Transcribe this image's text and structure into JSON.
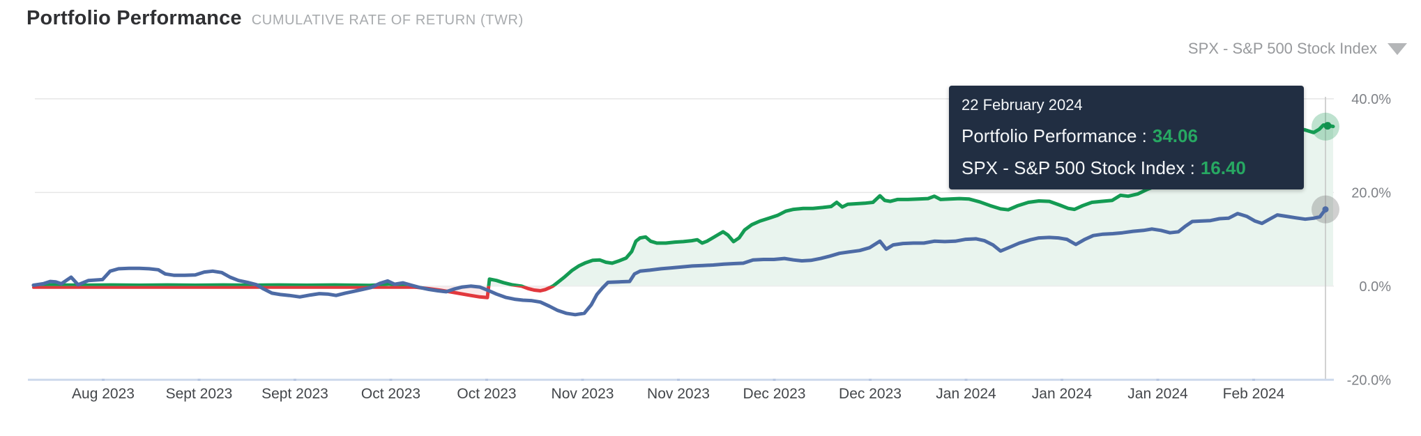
{
  "header": {
    "title": "Portfolio Performance",
    "subtitle": "CUMULATIVE RATE OF RETURN (TWR)"
  },
  "benchmark_selector": {
    "label": "SPX - S&P 500 Stock Index"
  },
  "tooltip": {
    "date": "22 February 2024",
    "rows": [
      {
        "label": "Portfolio Performance :",
        "value": "34.06"
      },
      {
        "label": "SPX - S&P 500 Stock Index :",
        "value": "16.40"
      }
    ],
    "value_color": "#27a862"
  },
  "chart_data": {
    "type": "line",
    "title": "Portfolio Performance — Cumulative Rate of Return (TWR)",
    "x_unit": "pixel position along time axis",
    "y_unit": "percent cumulative return",
    "x_tick_labels": [
      "Aug 2023",
      "Sept 2023",
      "Sept 2023",
      "Oct 2023",
      "Oct 2023",
      "Nov 2023",
      "Nov 2023",
      "Dec 2023",
      "Dec 2023",
      "Jan 2024",
      "Jan 2024",
      "Jan 2024",
      "Feb 2024"
    ],
    "y_tick_labels": [
      "40.0%",
      "20.0%",
      "0.0%",
      "-20.0%"
    ],
    "y_tick_values": [
      40,
      20,
      0,
      -20
    ],
    "y_axis_range_pct": [
      -20,
      40
    ],
    "grid": true,
    "legend_position": "none",
    "hover_date": "22 February 2024",
    "series": [
      {
        "name": "Portfolio Performance",
        "color": "#149b53",
        "negative_color": "#e1383d",
        "final_value": 34.06,
        "points": [
          [
            48,
            0.2
          ],
          [
            80,
            0.25
          ],
          [
            120,
            0.2
          ],
          [
            160,
            0.25
          ],
          [
            200,
            0.2
          ],
          [
            240,
            0.25
          ],
          [
            280,
            0.2
          ],
          [
            320,
            0.25
          ],
          [
            360,
            0.2
          ],
          [
            400,
            0.25
          ],
          [
            440,
            0.2
          ],
          [
            480,
            0.25
          ],
          [
            510,
            0.2
          ],
          [
            530,
            0.15
          ],
          [
            548,
            0.3
          ],
          [
            558,
            0.45
          ],
          [
            568,
            0.2
          ],
          [
            585,
            0.0
          ],
          [
            600,
            -0.3
          ],
          [
            615,
            -0.55
          ],
          [
            630,
            -0.85
          ],
          [
            645,
            -1.2
          ],
          [
            660,
            -1.6
          ],
          [
            675,
            -2.0
          ],
          [
            688,
            -2.3
          ],
          [
            699,
            -2.45
          ],
          [
            702,
            1.5
          ],
          [
            712,
            1.2
          ],
          [
            722,
            0.75
          ],
          [
            734,
            0.3
          ],
          [
            748,
            0.0
          ],
          [
            757,
            -0.5
          ],
          [
            766,
            -0.85
          ],
          [
            775,
            -1.0
          ],
          [
            782,
            -0.75
          ],
          [
            788,
            -0.35
          ],
          [
            793,
            0.0
          ],
          [
            800,
            0.8
          ],
          [
            810,
            2.0
          ],
          [
            820,
            3.3
          ],
          [
            830,
            4.3
          ],
          [
            840,
            5.0
          ],
          [
            850,
            5.5
          ],
          [
            860,
            5.6
          ],
          [
            869,
            5.1
          ],
          [
            878,
            4.9
          ],
          [
            888,
            5.4
          ],
          [
            898,
            6.0
          ],
          [
            906,
            7.4
          ],
          [
            912,
            9.6
          ],
          [
            918,
            10.3
          ],
          [
            926,
            10.5
          ],
          [
            933,
            9.6
          ],
          [
            942,
            9.2
          ],
          [
            955,
            9.2
          ],
          [
            968,
            9.4
          ],
          [
            980,
            9.5
          ],
          [
            992,
            9.7
          ],
          [
            1000,
            9.9
          ],
          [
            1007,
            9.2
          ],
          [
            1014,
            9.6
          ],
          [
            1022,
            10.3
          ],
          [
            1030,
            11.0
          ],
          [
            1037,
            11.6
          ],
          [
            1044,
            10.9
          ],
          [
            1052,
            9.5
          ],
          [
            1060,
            10.3
          ],
          [
            1068,
            12.0
          ],
          [
            1078,
            13.1
          ],
          [
            1090,
            13.9
          ],
          [
            1103,
            14.5
          ],
          [
            1115,
            15.1
          ],
          [
            1127,
            16.0
          ],
          [
            1138,
            16.4
          ],
          [
            1152,
            16.6
          ],
          [
            1166,
            16.6
          ],
          [
            1180,
            16.8
          ],
          [
            1192,
            17.0
          ],
          [
            1200,
            17.9
          ],
          [
            1208,
            16.9
          ],
          [
            1216,
            17.5
          ],
          [
            1228,
            17.6
          ],
          [
            1240,
            17.7
          ],
          [
            1252,
            17.9
          ],
          [
            1262,
            19.3
          ],
          [
            1269,
            18.3
          ],
          [
            1277,
            18.1
          ],
          [
            1287,
            18.5
          ],
          [
            1302,
            18.5
          ],
          [
            1317,
            18.6
          ],
          [
            1331,
            18.7
          ],
          [
            1340,
            19.2
          ],
          [
            1349,
            18.5
          ],
          [
            1362,
            18.6
          ],
          [
            1376,
            18.7
          ],
          [
            1390,
            18.6
          ],
          [
            1405,
            18.0
          ],
          [
            1420,
            17.2
          ],
          [
            1435,
            16.5
          ],
          [
            1446,
            16.3
          ],
          [
            1460,
            17.2
          ],
          [
            1475,
            17.9
          ],
          [
            1490,
            18.2
          ],
          [
            1505,
            18.1
          ],
          [
            1520,
            17.3
          ],
          [
            1532,
            16.6
          ],
          [
            1541,
            16.4
          ],
          [
            1553,
            17.2
          ],
          [
            1566,
            17.9
          ],
          [
            1580,
            18.1
          ],
          [
            1595,
            18.3
          ],
          [
            1607,
            19.4
          ],
          [
            1618,
            19.2
          ],
          [
            1632,
            19.7
          ],
          [
            1646,
            20.7
          ],
          [
            1660,
            21.5
          ],
          [
            1674,
            22.1
          ],
          [
            1689,
            23.3
          ],
          [
            1703,
            24.1
          ],
          [
            1716,
            25.0
          ],
          [
            1729,
            25.8
          ],
          [
            1743,
            26.4
          ],
          [
            1756,
            27.2
          ],
          [
            1769,
            28.0
          ],
          [
            1781,
            28.8
          ],
          [
            1793,
            29.6
          ],
          [
            1806,
            30.6
          ],
          [
            1819,
            31.4
          ],
          [
            1831,
            32.2
          ],
          [
            1844,
            32.9
          ],
          [
            1857,
            33.3
          ],
          [
            1871,
            33.4
          ],
          [
            1884,
            32.8
          ],
          [
            1892,
            33.5
          ],
          [
            1898,
            34.4
          ],
          [
            1905,
            34.3
          ],
          [
            1912,
            34.1
          ]
        ]
      },
      {
        "name": "SPX - S&P 500 Stock Index",
        "color": "#4d6ba5",
        "final_value": 16.4,
        "points": [
          [
            48,
            0.2
          ],
          [
            62,
            0.5
          ],
          [
            72,
            1.0
          ],
          [
            80,
            0.9
          ],
          [
            88,
            0.5
          ],
          [
            102,
            1.9
          ],
          [
            112,
            0.3
          ],
          [
            127,
            1.2
          ],
          [
            147,
            1.4
          ],
          [
            158,
            3.2
          ],
          [
            170,
            3.7
          ],
          [
            185,
            3.8
          ],
          [
            200,
            3.8
          ],
          [
            214,
            3.7
          ],
          [
            227,
            3.5
          ],
          [
            237,
            2.6
          ],
          [
            250,
            2.3
          ],
          [
            265,
            2.3
          ],
          [
            280,
            2.4
          ],
          [
            293,
            3.0
          ],
          [
            305,
            3.2
          ],
          [
            318,
            2.9
          ],
          [
            330,
            1.9
          ],
          [
            342,
            1.2
          ],
          [
            355,
            0.8
          ],
          [
            368,
            0.3
          ],
          [
            378,
            -0.6
          ],
          [
            390,
            -1.5
          ],
          [
            402,
            -1.8
          ],
          [
            415,
            -2.0
          ],
          [
            430,
            -2.3
          ],
          [
            445,
            -1.9
          ],
          [
            458,
            -1.6
          ],
          [
            470,
            -1.7
          ],
          [
            482,
            -2.0
          ],
          [
            495,
            -1.5
          ],
          [
            508,
            -1.1
          ],
          [
            520,
            -0.7
          ],
          [
            532,
            -0.3
          ],
          [
            545,
            0.6
          ],
          [
            556,
            1.1
          ],
          [
            566,
            0.4
          ],
          [
            578,
            0.7
          ],
          [
            590,
            0.2
          ],
          [
            602,
            -0.3
          ],
          [
            615,
            -0.7
          ],
          [
            628,
            -1.0
          ],
          [
            640,
            -1.2
          ],
          [
            652,
            -0.6
          ],
          [
            663,
            -0.2
          ],
          [
            675,
            0.0
          ],
          [
            688,
            -0.2
          ],
          [
            700,
            -0.9
          ],
          [
            712,
            -1.7
          ],
          [
            725,
            -2.4
          ],
          [
            738,
            -2.8
          ],
          [
            750,
            -3.0
          ],
          [
            762,
            -3.1
          ],
          [
            775,
            -3.4
          ],
          [
            788,
            -4.3
          ],
          [
            800,
            -5.2
          ],
          [
            812,
            -5.8
          ],
          [
            825,
            -6.1
          ],
          [
            838,
            -5.8
          ],
          [
            848,
            -4.0
          ],
          [
            856,
            -1.8
          ],
          [
            864,
            -0.4
          ],
          [
            872,
            0.8
          ],
          [
            888,
            0.9
          ],
          [
            903,
            1.0
          ],
          [
            910,
            2.6
          ],
          [
            918,
            3.2
          ],
          [
            932,
            3.4
          ],
          [
            948,
            3.7
          ],
          [
            963,
            3.9
          ],
          [
            978,
            4.1
          ],
          [
            993,
            4.3
          ],
          [
            1008,
            4.4
          ],
          [
            1023,
            4.5
          ],
          [
            1038,
            4.7
          ],
          [
            1052,
            4.8
          ],
          [
            1066,
            4.9
          ],
          [
            1080,
            5.6
          ],
          [
            1095,
            5.7
          ],
          [
            1110,
            5.7
          ],
          [
            1125,
            5.9
          ],
          [
            1138,
            5.6
          ],
          [
            1150,
            5.4
          ],
          [
            1163,
            5.5
          ],
          [
            1177,
            5.9
          ],
          [
            1190,
            6.4
          ],
          [
            1204,
            7.0
          ],
          [
            1218,
            7.3
          ],
          [
            1233,
            7.6
          ],
          [
            1247,
            8.2
          ],
          [
            1262,
            9.6
          ],
          [
            1271,
            7.9
          ],
          [
            1281,
            8.8
          ],
          [
            1295,
            9.1
          ],
          [
            1310,
            9.2
          ],
          [
            1325,
            9.2
          ],
          [
            1340,
            9.6
          ],
          [
            1355,
            9.5
          ],
          [
            1370,
            9.6
          ],
          [
            1385,
            10.0
          ],
          [
            1400,
            10.1
          ],
          [
            1412,
            9.7
          ],
          [
            1424,
            8.8
          ],
          [
            1435,
            7.5
          ],
          [
            1448,
            8.3
          ],
          [
            1462,
            9.2
          ],
          [
            1478,
            9.9
          ],
          [
            1490,
            10.3
          ],
          [
            1505,
            10.4
          ],
          [
            1518,
            10.3
          ],
          [
            1530,
            10.0
          ],
          [
            1543,
            8.9
          ],
          [
            1556,
            10.0
          ],
          [
            1568,
            10.8
          ],
          [
            1582,
            11.1
          ],
          [
            1596,
            11.2
          ],
          [
            1610,
            11.4
          ],
          [
            1625,
            11.7
          ],
          [
            1640,
            11.9
          ],
          [
            1652,
            12.2
          ],
          [
            1665,
            11.9
          ],
          [
            1678,
            11.4
          ],
          [
            1690,
            11.6
          ],
          [
            1700,
            12.8
          ],
          [
            1710,
            13.8
          ],
          [
            1722,
            13.9
          ],
          [
            1736,
            14.0
          ],
          [
            1749,
            14.4
          ],
          [
            1762,
            14.5
          ],
          [
            1775,
            15.5
          ],
          [
            1788,
            14.9
          ],
          [
            1800,
            13.9
          ],
          [
            1810,
            13.4
          ],
          [
            1822,
            14.4
          ],
          [
            1832,
            15.2
          ],
          [
            1845,
            14.9
          ],
          [
            1858,
            14.6
          ],
          [
            1872,
            14.3
          ],
          [
            1884,
            14.5
          ],
          [
            1893,
            14.8
          ],
          [
            1901,
            16.4
          ]
        ]
      }
    ],
    "near_zero_band": {
      "comment": "thin red sub-zero trace visible under the flat green line Aug-Oct",
      "color": "#e1383d",
      "points": [
        [
          48,
          -0.3
        ],
        [
          600,
          -0.3
        ],
        [
          612,
          -0.5
        ]
      ]
    },
    "fills": {
      "positive": "#e9f4ee",
      "negative": "#fae9ea"
    },
    "colors": {
      "gridline": "#e6e6e6",
      "zero_line": "#ececec",
      "axis_line": "#cdd9ec",
      "axis_tick": "#b6c6e1",
      "crosshair": "#c4c4c4",
      "x_label": "#43464a",
      "y_label": "#7f8287",
      "halo_green": "rgba(21,150,83,0.28)",
      "halo_gray": "rgba(110,110,110,0.32)",
      "dot_green": "#12914f",
      "dot_blue": "#4d6ba5"
    }
  }
}
